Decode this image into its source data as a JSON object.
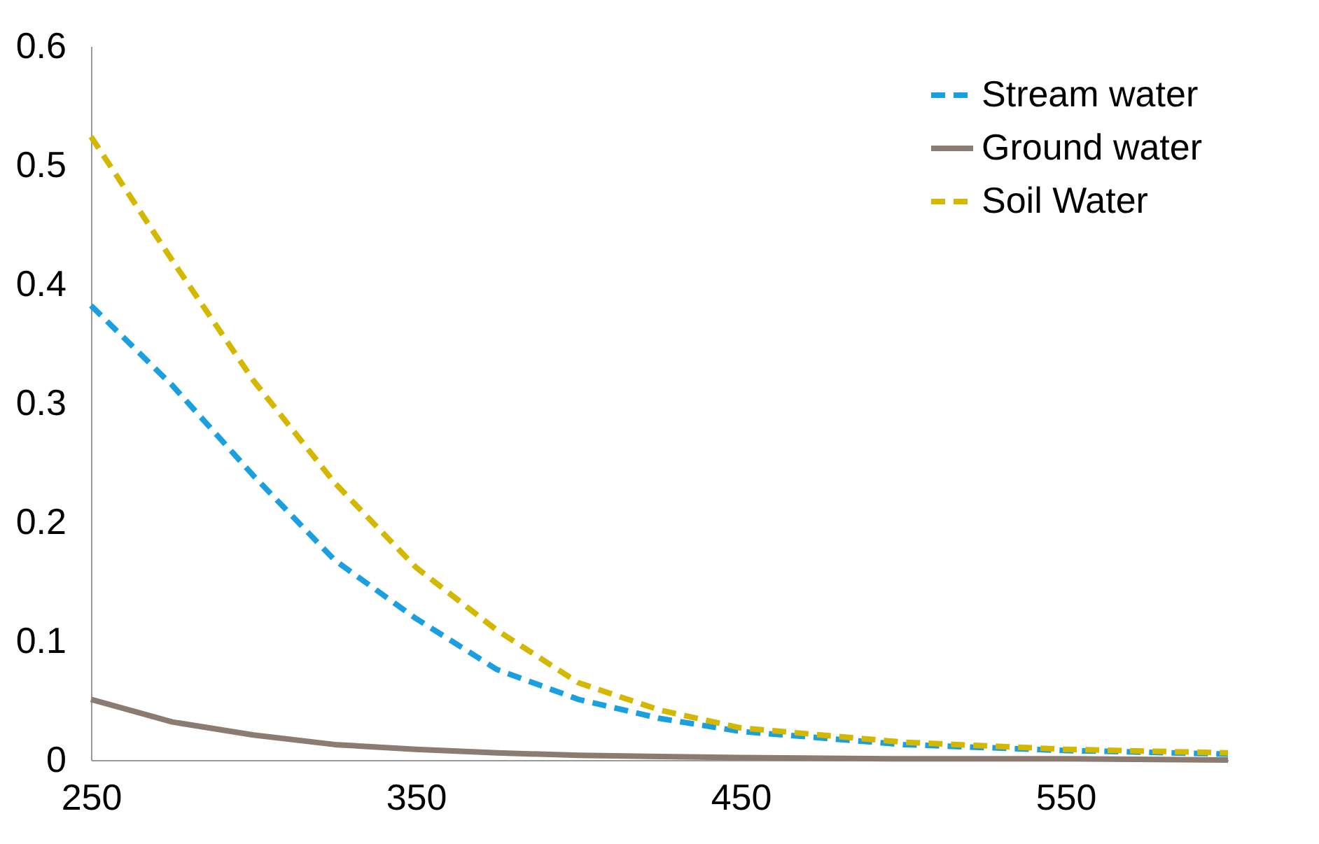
{
  "chart_data": {
    "type": "line",
    "x": [
      250,
      275,
      300,
      325,
      350,
      375,
      400,
      425,
      450,
      500,
      550,
      600
    ],
    "series": [
      {
        "name": "Stream water",
        "color": "#1aa0e0",
        "line_style": "dashed",
        "values": [
          0.382,
          0.315,
          0.239,
          0.168,
          0.119,
          0.076,
          0.051,
          0.035,
          0.024,
          0.013,
          0.008,
          0.005
        ]
      },
      {
        "name": "Ground water",
        "color": "#8c7b70",
        "line_style": "solid",
        "values": [
          0.051,
          0.032,
          0.021,
          0.013,
          0.009,
          0.006,
          0.004,
          0.003,
          0.002,
          0.001,
          0.001,
          0.0
        ]
      },
      {
        "name": "Soil Water",
        "color": "#d4b800",
        "line_style": "dashed",
        "values": [
          0.524,
          0.42,
          0.319,
          0.233,
          0.162,
          0.109,
          0.065,
          0.042,
          0.027,
          0.015,
          0.009,
          0.006
        ]
      }
    ],
    "xlim": [
      250,
      600
    ],
    "xticks": [
      250,
      350,
      450,
      550
    ],
    "ylim": [
      0,
      0.6
    ],
    "yticks": [
      0,
      0.1,
      0.2,
      0.3,
      0.4,
      0.5,
      0.6
    ],
    "grid": false,
    "legend": "top right",
    "marker": "none"
  }
}
